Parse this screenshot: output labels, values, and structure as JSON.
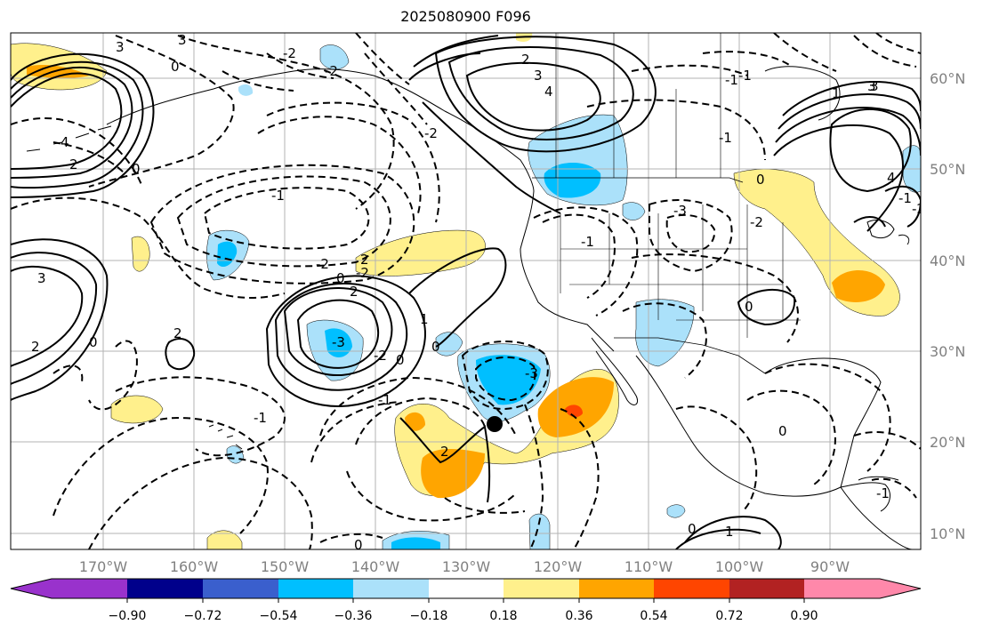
{
  "title": "2025080900 F096",
  "map": {
    "lat_labels": [
      "60°N",
      "50°N",
      "40°N",
      "30°N",
      "20°N",
      "10°N"
    ],
    "lon_labels": [
      "170°W",
      "160°W",
      "150°W",
      "140°W",
      "130°W",
      "120°W",
      "110°W",
      "100°W",
      "90°W"
    ],
    "contour_labels": [
      "3",
      "0",
      "3",
      "-2",
      "4",
      "2",
      "2",
      "4",
      "-2",
      "-2",
      "3",
      "3",
      "-1",
      "0",
      "2",
      "0",
      "-1",
      "-2",
      "2",
      "-3",
      "-3",
      "-2",
      "0",
      "2",
      "-1",
      "3",
      "-1",
      "-1",
      "0",
      "0",
      "2",
      "1",
      "-2",
      "2",
      "0",
      "-3",
      "-2",
      "-1",
      "0",
      "0",
      "-1",
      "0",
      "0",
      "1",
      "-1",
      "3",
      "4",
      "1",
      "-1",
      "-2"
    ],
    "marker": "black-dot",
    "colors": {
      "positive": [
        "#fff08c",
        "#ffa500",
        "#ff4500"
      ],
      "negative": [
        "#abe1fa",
        "#00bfff"
      ],
      "land_lines": "#000000",
      "grid": "#b3b3b3"
    }
  },
  "colorbar": {
    "ticks": [
      "−0.90",
      "−0.72",
      "−0.54",
      "−0.36",
      "−0.18",
      "0.18",
      "0.36",
      "0.54",
      "0.72",
      "0.90"
    ],
    "colors": [
      "#9932cc",
      "#00008b",
      "#3a5fcd",
      "#00bfff",
      "#abe1fa",
      "#ffffff",
      "#fff08c",
      "#ffa500",
      "#ff4500",
      "#b22222",
      "#ff88aa"
    ]
  }
}
